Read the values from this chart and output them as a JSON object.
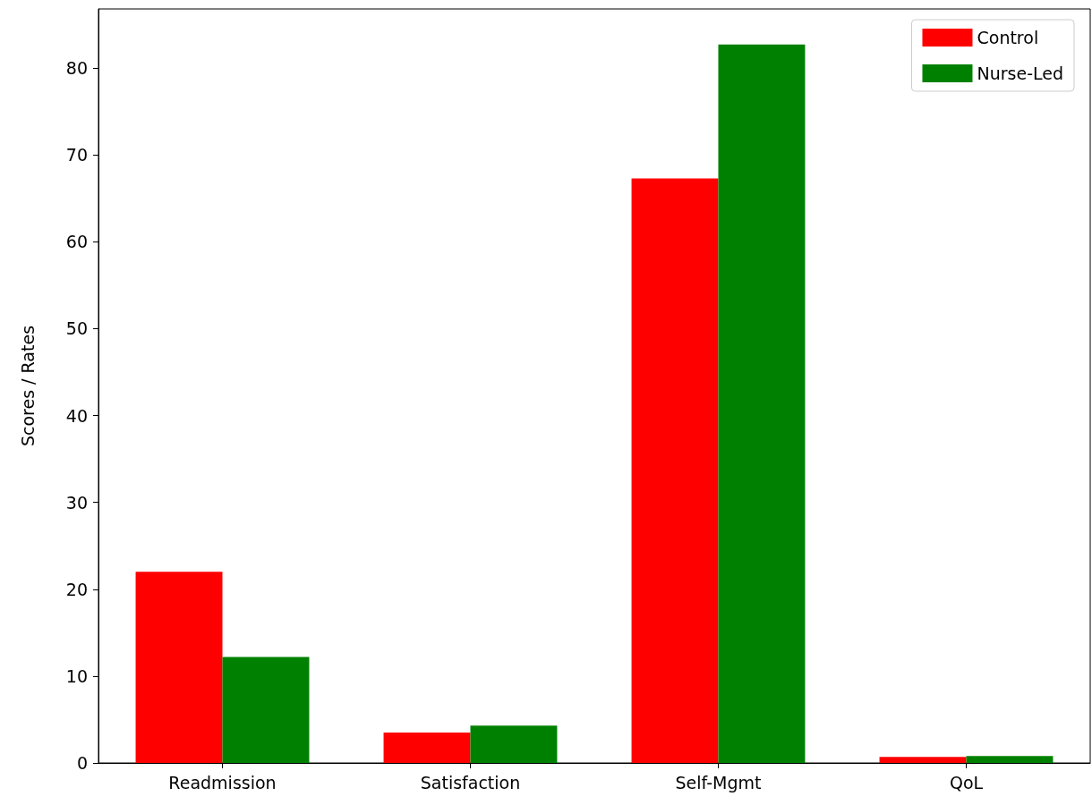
{
  "chart_data": {
    "type": "bar",
    "ylabel": "Scores / Rates",
    "categories": [
      "Readmission",
      "Satisfaction",
      "Self-Mgmt",
      "QoL"
    ],
    "series": [
      {
        "name": "Control",
        "color": "#ff0000",
        "values": [
          22.0,
          3.5,
          67.3,
          0.7
        ]
      },
      {
        "name": "Nurse-Led",
        "color": "#008000",
        "values": [
          12.2,
          4.3,
          82.7,
          0.8
        ]
      }
    ],
    "ylim": [
      0,
      86.8
    ],
    "yticks": [
      0,
      10,
      20,
      30,
      40,
      50,
      60,
      70,
      80
    ],
    "grid": false,
    "legend": "top right"
  }
}
